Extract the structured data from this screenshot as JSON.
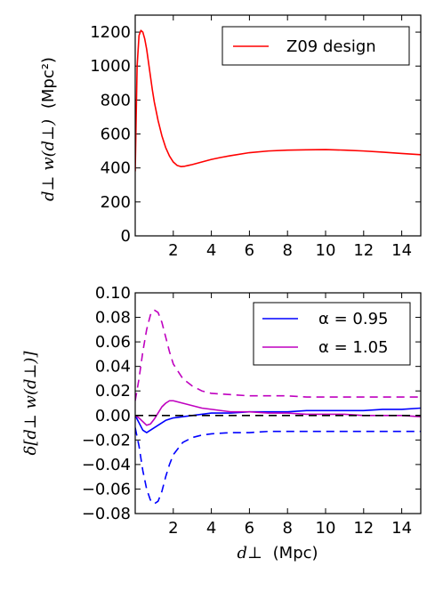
{
  "chart_data": [
    {
      "type": "line",
      "panel": "top",
      "ylabel_math": "d⊥ w(d⊥)",
      "ylabel_unit": "(Mpc²)",
      "xlim": [
        0,
        15
      ],
      "ylim": [
        0,
        1300
      ],
      "xticks": [
        "2",
        "4",
        "6",
        "8",
        "10",
        "12",
        "14"
      ],
      "yticks": [
        "0",
        "200",
        "400",
        "600",
        "800",
        "1000",
        "1200"
      ],
      "legend_position": "top-right",
      "series": [
        {
          "name": "Z09 design",
          "color": "#ff0000",
          "style": "solid",
          "x": [
            0.0,
            0.05,
            0.1,
            0.2,
            0.3,
            0.4,
            0.5,
            0.6,
            0.7,
            0.8,
            0.9,
            1.0,
            1.2,
            1.4,
            1.6,
            1.8,
            2.0,
            2.2,
            2.4,
            2.6,
            2.8,
            3.0,
            3.5,
            4.0,
            4.5,
            5.0,
            6.0,
            7.0,
            8.0,
            9.0,
            10.0,
            11.0,
            12.0,
            13.0,
            14.0,
            15.0
          ],
          "y": [
            380,
            700,
            1000,
            1180,
            1210,
            1200,
            1160,
            1100,
            1020,
            940,
            860,
            790,
            680,
            590,
            520,
            470,
            435,
            415,
            408,
            410,
            415,
            420,
            435,
            450,
            462,
            472,
            490,
            500,
            505,
            507,
            508,
            505,
            500,
            493,
            485,
            478
          ]
        }
      ]
    },
    {
      "type": "line",
      "panel": "bottom",
      "xlabel_math": "d⊥",
      "xlabel_unit": "(Mpc)",
      "ylabel_math": "δ[d⊥ w(d⊥)]",
      "xlim": [
        0,
        15
      ],
      "ylim": [
        -0.08,
        0.1
      ],
      "xticks": [
        "2",
        "4",
        "6",
        "8",
        "10",
        "12",
        "14"
      ],
      "yticks": [
        "−0.08",
        "−0.06",
        "−0.04",
        "−0.02",
        "0.00",
        "0.02",
        "0.04",
        "0.06",
        "0.08",
        "0.10"
      ],
      "legend_position": "top-right",
      "series": [
        {
          "name": "α = 0.95",
          "color": "#0000ff",
          "style": "solid",
          "x": [
            0.0,
            0.2,
            0.4,
            0.6,
            0.8,
            1.0,
            1.2,
            1.4,
            1.6,
            1.8,
            2.0,
            2.5,
            3.0,
            3.5,
            4.0,
            5.0,
            6.0,
            7.0,
            8.0,
            9.0,
            10.0,
            11.0,
            12.0,
            13.0,
            14.0,
            15.0
          ],
          "y": [
            0.0,
            -0.006,
            -0.012,
            -0.014,
            -0.012,
            -0.01,
            -0.008,
            -0.006,
            -0.004,
            -0.003,
            -0.002,
            -0.001,
            0.0,
            0.001,
            0.002,
            0.002,
            0.003,
            0.003,
            0.003,
            0.004,
            0.004,
            0.004,
            0.004,
            0.005,
            0.005,
            0.006
          ]
        },
        {
          "name": "α = 1.05",
          "color": "#bf00bf",
          "style": "solid",
          "x": [
            0.0,
            0.2,
            0.4,
            0.6,
            0.8,
            1.0,
            1.2,
            1.4,
            1.6,
            1.8,
            2.0,
            2.5,
            3.0,
            3.5,
            4.0,
            5.0,
            6.0,
            7.0,
            8.0,
            9.0,
            10.0,
            11.0,
            12.0,
            13.0,
            14.0,
            15.0
          ],
          "y": [
            0.0,
            -0.002,
            -0.005,
            -0.008,
            -0.007,
            -0.003,
            0.002,
            0.007,
            0.01,
            0.012,
            0.012,
            0.01,
            0.008,
            0.006,
            0.005,
            0.003,
            0.003,
            0.002,
            0.002,
            0.001,
            0.001,
            0.001,
            0.0,
            0.0,
            0.0,
            -0.001
          ]
        },
        {
          "name": "",
          "color": "#0000ff",
          "style": "dashed",
          "x": [
            0.0,
            0.2,
            0.4,
            0.6,
            0.8,
            1.0,
            1.2,
            1.4,
            1.6,
            1.8,
            2.0,
            2.5,
            3.0,
            3.5,
            4.0,
            5.0,
            6.0,
            7.0,
            8.0,
            9.0,
            10.0,
            11.0,
            12.0,
            13.0,
            14.0,
            15.0
          ],
          "y": [
            -0.01,
            -0.025,
            -0.045,
            -0.06,
            -0.069,
            -0.072,
            -0.07,
            -0.062,
            -0.05,
            -0.04,
            -0.032,
            -0.022,
            -0.018,
            -0.016,
            -0.015,
            -0.014,
            -0.014,
            -0.013,
            -0.013,
            -0.013,
            -0.013,
            -0.013,
            -0.013,
            -0.013,
            -0.013,
            -0.013
          ]
        },
        {
          "name": "",
          "color": "#bf00bf",
          "style": "dashed",
          "x": [
            0.0,
            0.2,
            0.4,
            0.6,
            0.8,
            1.0,
            1.2,
            1.4,
            1.6,
            1.8,
            2.0,
            2.5,
            3.0,
            3.5,
            4.0,
            5.0,
            6.0,
            7.0,
            8.0,
            9.0,
            10.0,
            11.0,
            12.0,
            13.0,
            14.0,
            15.0
          ],
          "y": [
            0.012,
            0.03,
            0.052,
            0.07,
            0.082,
            0.086,
            0.084,
            0.076,
            0.064,
            0.052,
            0.042,
            0.03,
            0.024,
            0.02,
            0.018,
            0.017,
            0.016,
            0.016,
            0.016,
            0.015,
            0.015,
            0.015,
            0.015,
            0.015,
            0.015,
            0.015
          ]
        },
        {
          "name": "",
          "color": "#000000",
          "style": "dashed",
          "x": [
            0.0,
            15.0
          ],
          "y": [
            0.0,
            0.0
          ]
        }
      ]
    }
  ]
}
